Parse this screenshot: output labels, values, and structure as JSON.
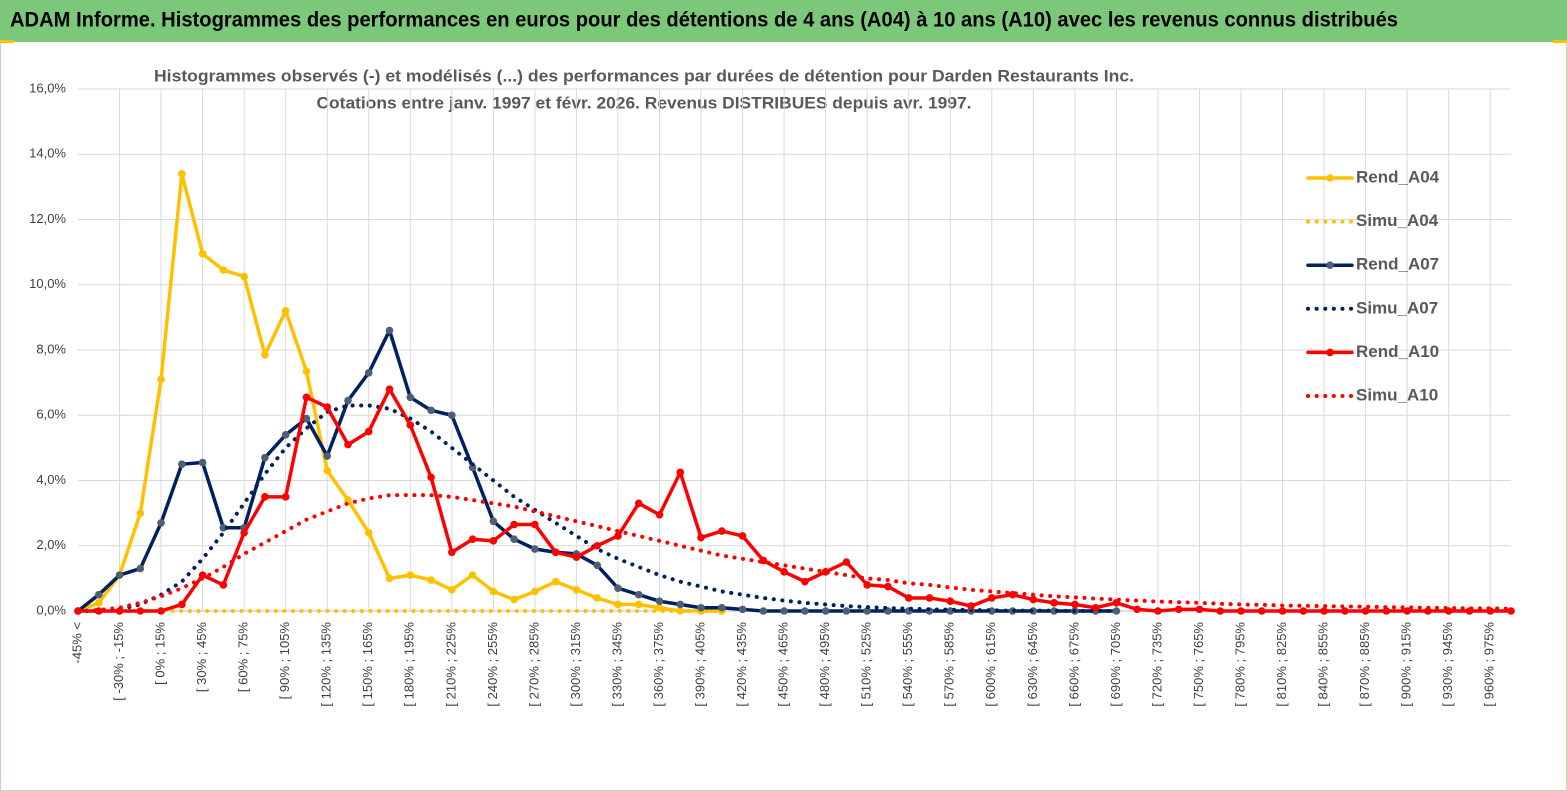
{
  "chart_data": {
    "type": "line",
    "title": "ADAM Informe. Histogrammes des performances en euros pour des détentions de 4 ans (A04) à 10 ans (A10) avec les revenus connus distribués",
    "subtitle": [
      "Histogrammes observés (-) et modélisés (...) des performances par durées de détention pour Darden Restaurants Inc.",
      "Cotations entre janv. 1997 et févr. 2026. Revenus DISTRIBUES depuis avr. 1997."
    ],
    "categories": [
      "-45% <",
      null,
      "[ -30% ; -15%",
      null,
      "[ 0% ; 15%",
      null,
      "[ 30% ; 45%",
      null,
      "[ 60% ; 75%",
      null,
      "[ 90% ; 105%",
      null,
      "[ 120% ; 135%",
      null,
      "[ 150% ; 165%",
      null,
      "[ 180% ; 195%",
      null,
      "[ 210% ; 225%",
      null,
      "[ 240% ; 255%",
      null,
      "[ 270% ; 285%",
      null,
      "[ 300% ; 315%",
      null,
      "[ 330% ; 345%",
      null,
      "[ 360% ; 375%",
      null,
      "[ 390% ; 405%",
      null,
      "[ 420% ; 435%",
      null,
      "[ 450% ; 465%",
      null,
      "[ 480% ; 495%",
      null,
      "[ 510% ; 525%",
      null,
      "[ 540% ; 555%",
      null,
      "[ 570% ; 585%",
      null,
      "[ 600% ; 615%",
      null,
      "[ 630% ; 645%",
      null,
      "[ 660% ; 675%",
      null,
      "[ 690% ; 705%",
      null,
      "[ 720% ; 735%",
      null,
      "[ 750% ; 765%",
      null,
      "[ 780% ; 795%",
      null,
      "[ 810% ; 825%",
      null,
      "[ 840% ; 855%",
      null,
      "[ 870% ; 885%",
      null,
      "[ 900% ; 915%",
      null,
      "[ 930% ; 945%",
      null,
      "[ 960% ; 975%",
      null
    ],
    "series": [
      {
        "name": "Rend_A04",
        "color": "#ffc000",
        "dotted": false,
        "marker": true,
        "values": [
          0,
          0.25,
          1.1,
          3.0,
          7.1,
          13.4,
          10.95,
          10.45,
          10.25,
          7.85,
          9.2,
          7.35,
          4.3,
          3.4,
          2.4,
          1.0,
          1.1,
          0.95,
          0.65,
          1.1,
          0.6,
          0.35,
          0.6,
          0.9,
          0.65,
          0.4,
          0.2,
          0.2,
          0.1,
          0,
          0,
          0,
          null,
          null,
          null,
          null,
          null,
          null,
          null,
          null,
          null,
          null,
          null,
          null,
          null,
          null,
          null,
          null,
          null,
          null,
          null,
          null,
          null,
          null,
          null,
          null,
          null,
          null,
          null,
          null,
          null,
          null,
          null,
          null,
          null,
          null,
          null,
          null,
          null,
          null
        ]
      },
      {
        "name": "Simu_A04",
        "color": "#ffc000",
        "dotted": true,
        "marker": false,
        "values": [
          0,
          0,
          0,
          0,
          0,
          0,
          0,
          0,
          0,
          0,
          0,
          0,
          0,
          0,
          0,
          0,
          0,
          0,
          0,
          0,
          0,
          0,
          0,
          0,
          0,
          0,
          0,
          0,
          0,
          0,
          0,
          0,
          null,
          null,
          null,
          null,
          null,
          null,
          null,
          null,
          null,
          null,
          null,
          null,
          null,
          null,
          null,
          null,
          null,
          null,
          null,
          null,
          null,
          null,
          null,
          null,
          null,
          null,
          null,
          null,
          null,
          null,
          null,
          null,
          null,
          null,
          null,
          null,
          null,
          null
        ]
      },
      {
        "name": "Rend_A07",
        "color": "#002060",
        "marker_color": "#4f5e73",
        "dotted": false,
        "marker": true,
        "values": [
          0,
          0.5,
          1.1,
          1.3,
          2.7,
          4.5,
          4.55,
          2.55,
          2.55,
          4.7,
          5.4,
          5.9,
          4.75,
          6.45,
          7.3,
          8.6,
          6.55,
          6.15,
          6.0,
          4.4,
          2.75,
          2.2,
          1.9,
          1.8,
          1.75,
          1.4,
          0.7,
          0.5,
          0.3,
          0.2,
          0.1,
          0.1,
          0.05,
          0,
          0,
          0,
          0,
          0,
          0,
          0,
          0,
          0,
          0,
          0,
          0,
          0,
          0,
          0,
          0,
          0,
          0,
          null,
          null,
          null,
          null,
          null,
          null,
          null,
          null,
          null,
          null,
          null,
          null,
          null,
          null,
          null,
          null,
          null,
          null,
          null
        ]
      },
      {
        "name": "Simu_A07",
        "color": "#002060",
        "dotted": true,
        "marker": false,
        "values": [
          0,
          0,
          0.05,
          0.2,
          0.5,
          0.9,
          1.6,
          2.4,
          3.3,
          4.2,
          5.0,
          5.6,
          6.1,
          6.3,
          6.3,
          6.2,
          5.9,
          5.5,
          5.0,
          4.5,
          4.0,
          3.5,
          3.1,
          2.7,
          2.3,
          1.9,
          1.6,
          1.35,
          1.1,
          0.9,
          0.75,
          0.6,
          0.5,
          0.4,
          0.32,
          0.25,
          0.2,
          0.15,
          0.12,
          0.09,
          0.07,
          0.05,
          0.04,
          0.03,
          0.02,
          0.01,
          0.01,
          0.01,
          0,
          0,
          0,
          null,
          null,
          null,
          null,
          null,
          null,
          null,
          null,
          null,
          null,
          null,
          null,
          null,
          null,
          null,
          null,
          null,
          null,
          null
        ]
      },
      {
        "name": "Rend_A10",
        "color": "#ff0000",
        "dotted": false,
        "marker": true,
        "values": [
          0,
          0,
          0,
          0,
          0,
          0.2,
          1.1,
          0.8,
          2.4,
          3.5,
          3.5,
          6.55,
          6.25,
          5.1,
          5.5,
          6.8,
          5.7,
          4.1,
          1.8,
          2.2,
          2.15,
          2.65,
          2.65,
          1.8,
          1.65,
          2.0,
          2.3,
          3.3,
          2.95,
          4.25,
          2.25,
          2.45,
          2.3,
          1.55,
          1.2,
          0.9,
          1.2,
          1.5,
          0.8,
          0.75,
          0.4,
          0.4,
          0.3,
          0.15,
          0.4,
          0.5,
          0.35,
          0.25,
          0.2,
          0.1,
          0.25,
          0.05,
          0,
          0.05,
          0.05,
          0,
          0,
          0,
          0,
          0,
          0,
          0,
          0,
          0,
          0,
          0,
          0,
          0,
          0,
          0
        ]
      },
      {
        "name": "Simu_A10",
        "color": "#ff0000",
        "dotted": true,
        "marker": false,
        "values": [
          0,
          0.03,
          0.1,
          0.25,
          0.45,
          0.7,
          1.0,
          1.35,
          1.75,
          2.1,
          2.45,
          2.8,
          3.05,
          3.3,
          3.45,
          3.55,
          3.55,
          3.55,
          3.5,
          3.4,
          3.3,
          3.2,
          3.05,
          2.9,
          2.75,
          2.6,
          2.45,
          2.3,
          2.15,
          2.0,
          1.85,
          1.7,
          1.6,
          1.5,
          1.4,
          1.3,
          1.2,
          1.1,
          1.0,
          0.95,
          0.85,
          0.8,
          0.72,
          0.65,
          0.6,
          0.55,
          0.5,
          0.45,
          0.42,
          0.38,
          0.35,
          0.32,
          0.29,
          0.27,
          0.25,
          0.22,
          0.2,
          0.19,
          0.17,
          0.16,
          0.15,
          0.14,
          0.13,
          0.12,
          0.11,
          0.1,
          0.09,
          0.08,
          0.08,
          0.07
        ]
      }
    ],
    "ylim": [
      0,
      16
    ],
    "yticks": [
      {
        "value": 0,
        "label": "0,0%"
      },
      {
        "value": 2,
        "label": "2,0%"
      },
      {
        "value": 4,
        "label": "4,0%"
      },
      {
        "value": 6,
        "label": "6,0%"
      },
      {
        "value": 8,
        "label": "8,0%"
      },
      {
        "value": 10,
        "label": "10,0%"
      },
      {
        "value": 12,
        "label": "12,0%"
      },
      {
        "value": 14,
        "label": "14,0%"
      },
      {
        "value": 16,
        "label": "16,0%"
      }
    ],
    "grid": true,
    "legend": "right"
  }
}
